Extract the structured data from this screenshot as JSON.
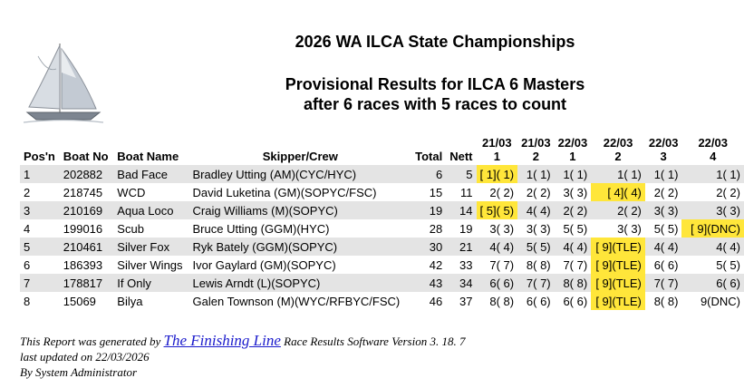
{
  "title": "2026 WA ILCA State Championships",
  "subtitle1": "Provisional Results for ILCA 6 Masters",
  "subtitle2": "after 6 races with 5 races to count",
  "logo_icon": "sailboat-icon",
  "columns": {
    "pos": "Pos'n",
    "boat_no": "Boat No",
    "boat_name": "Boat Name",
    "skipper": "Skipper/Crew",
    "total": "Total",
    "nett": "Nett"
  },
  "races": [
    {
      "date": "21/03",
      "num": "1"
    },
    {
      "date": "21/03",
      "num": "2"
    },
    {
      "date": "22/03",
      "num": "1"
    },
    {
      "date": "22/03",
      "num": "2"
    },
    {
      "date": "22/03",
      "num": "3"
    },
    {
      "date": "22/03",
      "num": "4"
    }
  ],
  "rows": [
    {
      "pos": "1",
      "boat_no": "202882",
      "boat_name": "Bad Face",
      "skipper": "Bradley Utting (AM)(CYC/HYC)",
      "total": "6",
      "nett": "5",
      "results": [
        {
          "text": "[ 1]( 1)",
          "hl": true
        },
        {
          "text": "1( 1)",
          "hl": false
        },
        {
          "text": "1( 1)",
          "hl": false
        },
        {
          "text": "1( 1)",
          "hl": false
        },
        {
          "text": "1( 1)",
          "hl": false
        },
        {
          "text": "1( 1)",
          "hl": false
        }
      ]
    },
    {
      "pos": "2",
      "boat_no": "218745",
      "boat_name": "WCD",
      "skipper": "David Luketina (GM)(SOPYC/FSC)",
      "total": "15",
      "nett": "11",
      "results": [
        {
          "text": "2( 2)",
          "hl": false
        },
        {
          "text": "2( 2)",
          "hl": false
        },
        {
          "text": "3( 3)",
          "hl": false
        },
        {
          "text": "[ 4]( 4)",
          "hl": true
        },
        {
          "text": "2( 2)",
          "hl": false
        },
        {
          "text": "2( 2)",
          "hl": false
        }
      ]
    },
    {
      "pos": "3",
      "boat_no": "210169",
      "boat_name": "Aqua Loco",
      "skipper": "Craig Williams (M)(SOPYC)",
      "total": "19",
      "nett": "14",
      "results": [
        {
          "text": "[ 5]( 5)",
          "hl": true
        },
        {
          "text": "4( 4)",
          "hl": false
        },
        {
          "text": "2( 2)",
          "hl": false
        },
        {
          "text": "2( 2)",
          "hl": false
        },
        {
          "text": "3( 3)",
          "hl": false
        },
        {
          "text": "3( 3)",
          "hl": false
        }
      ]
    },
    {
      "pos": "4",
      "boat_no": "199016",
      "boat_name": "Scub",
      "skipper": "Bruce Utting (GGM)(HYC)",
      "total": "28",
      "nett": "19",
      "results": [
        {
          "text": "3( 3)",
          "hl": false
        },
        {
          "text": "3( 3)",
          "hl": false
        },
        {
          "text": "5( 5)",
          "hl": false
        },
        {
          "text": "3( 3)",
          "hl": false
        },
        {
          "text": "5( 5)",
          "hl": false
        },
        {
          "text": "[ 9](DNC)",
          "hl": true
        }
      ]
    },
    {
      "pos": "5",
      "boat_no": "210461",
      "boat_name": "Silver Fox",
      "skipper": "Ryk Bately (GGM)(SOPYC)",
      "total": "30",
      "nett": "21",
      "results": [
        {
          "text": "4( 4)",
          "hl": false
        },
        {
          "text": "5( 5)",
          "hl": false
        },
        {
          "text": "4( 4)",
          "hl": false
        },
        {
          "text": "[ 9](TLE)",
          "hl": true
        },
        {
          "text": "4( 4)",
          "hl": false
        },
        {
          "text": "4( 4)",
          "hl": false
        }
      ]
    },
    {
      "pos": "6",
      "boat_no": "186393",
      "boat_name": "Silver Wings",
      "skipper": "Ivor Gaylard (GM)(SOPYC)",
      "total": "42",
      "nett": "33",
      "results": [
        {
          "text": "7( 7)",
          "hl": false
        },
        {
          "text": "8( 8)",
          "hl": false
        },
        {
          "text": "7( 7)",
          "hl": false
        },
        {
          "text": "[ 9](TLE)",
          "hl": true
        },
        {
          "text": "6( 6)",
          "hl": false
        },
        {
          "text": "5( 5)",
          "hl": false
        }
      ]
    },
    {
      "pos": "7",
      "boat_no": "178817",
      "boat_name": "If Only",
      "skipper": "Lewis Arndt (L)(SOPYC)",
      "total": "43",
      "nett": "34",
      "results": [
        {
          "text": "6( 6)",
          "hl": false
        },
        {
          "text": "7( 7)",
          "hl": false
        },
        {
          "text": "8( 8)",
          "hl": false
        },
        {
          "text": "[ 9](TLE)",
          "hl": true
        },
        {
          "text": "7( 7)",
          "hl": false
        },
        {
          "text": "6( 6)",
          "hl": false
        }
      ]
    },
    {
      "pos": "8",
      "boat_no": "15069",
      "boat_name": "Bilya",
      "skipper": "Galen Townson (M)(WYC/RFBYC/FSC)",
      "total": "46",
      "nett": "37",
      "results": [
        {
          "text": "8( 8)",
          "hl": false
        },
        {
          "text": "6( 6)",
          "hl": false
        },
        {
          "text": "6( 6)",
          "hl": false
        },
        {
          "text": "[ 9](TLE)",
          "hl": true
        },
        {
          "text": "8( 8)",
          "hl": false
        },
        {
          "text": "9(DNC)",
          "hl": false
        }
      ]
    }
  ],
  "footer": {
    "prefix": "This Report was generated by",
    "link": "The Finishing Line",
    "suffix": "Race Results Software Version 3. 18. 7",
    "updated": "last updated on 22/03/2026",
    "by": "By System Administrator"
  }
}
